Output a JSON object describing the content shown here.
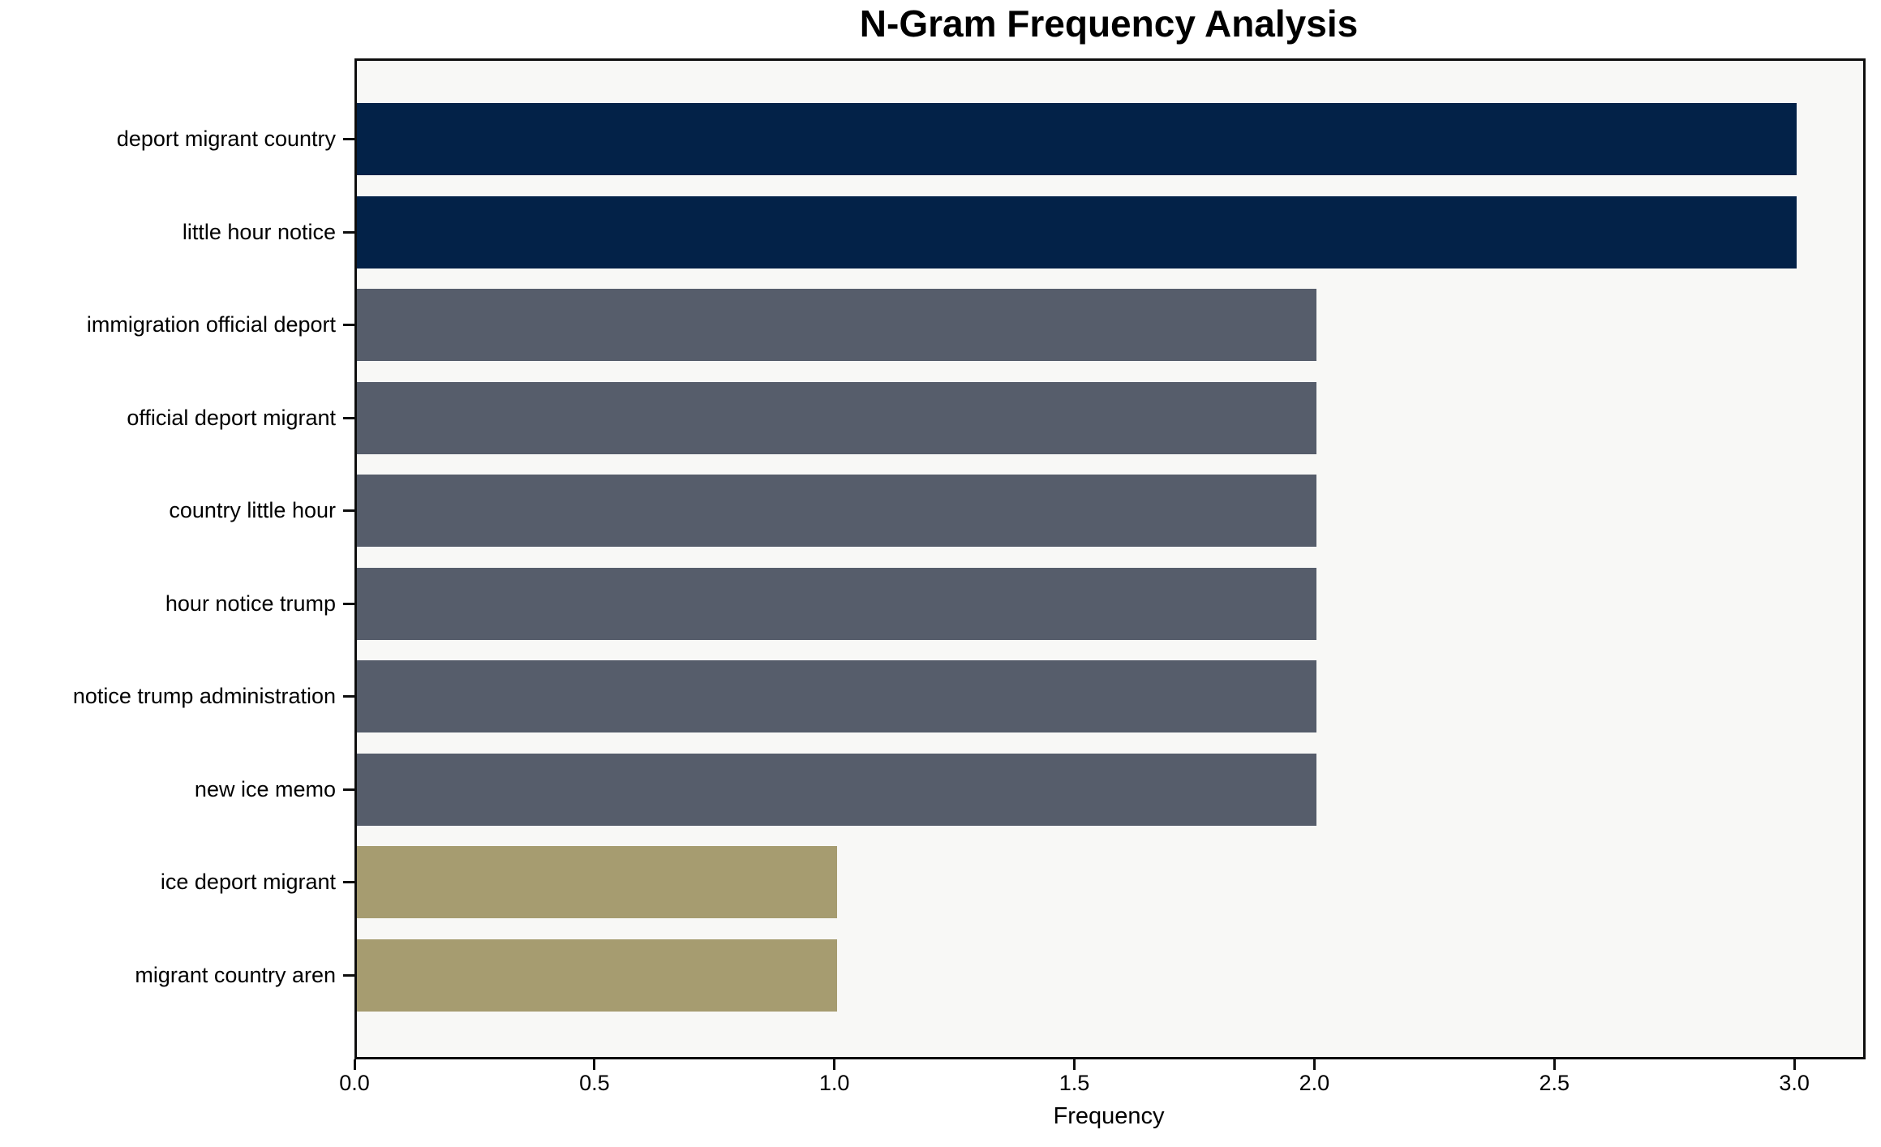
{
  "chart_data": {
    "type": "bar",
    "orientation": "horizontal",
    "title": "N-Gram Frequency Analysis",
    "xlabel": "Frequency",
    "ylabel": "",
    "categories": [
      "deport migrant country",
      "little hour notice",
      "immigration official deport",
      "official deport migrant",
      "country little hour",
      "hour notice trump",
      "notice trump administration",
      "new ice memo",
      "ice deport migrant",
      "migrant country aren"
    ],
    "values": [
      3,
      3,
      2,
      2,
      2,
      2,
      2,
      2,
      1,
      1
    ],
    "bar_colors": [
      "#032248",
      "#032248",
      "#565d6b",
      "#565d6b",
      "#565d6b",
      "#565d6b",
      "#565d6b",
      "#565d6b",
      "#a69c70",
      "#a69c70"
    ],
    "x_ticks": [
      0.0,
      0.5,
      1.0,
      1.5,
      2.0,
      2.5,
      3.0
    ],
    "x_tick_labels": [
      "0.0",
      "0.5",
      "1.0",
      "1.5",
      "2.0",
      "2.5",
      "3.0"
    ],
    "xlim": [
      0,
      3.15
    ],
    "grid": false,
    "legend": null,
    "colors": {
      "high_bar": "#032248",
      "mid_bar": "#565d6b",
      "low_bar": "#a69c70",
      "plot_background": "#f8f8f6",
      "figure_background": "#ffffff",
      "spine": "#0e0e0e",
      "text": "#000000"
    }
  }
}
